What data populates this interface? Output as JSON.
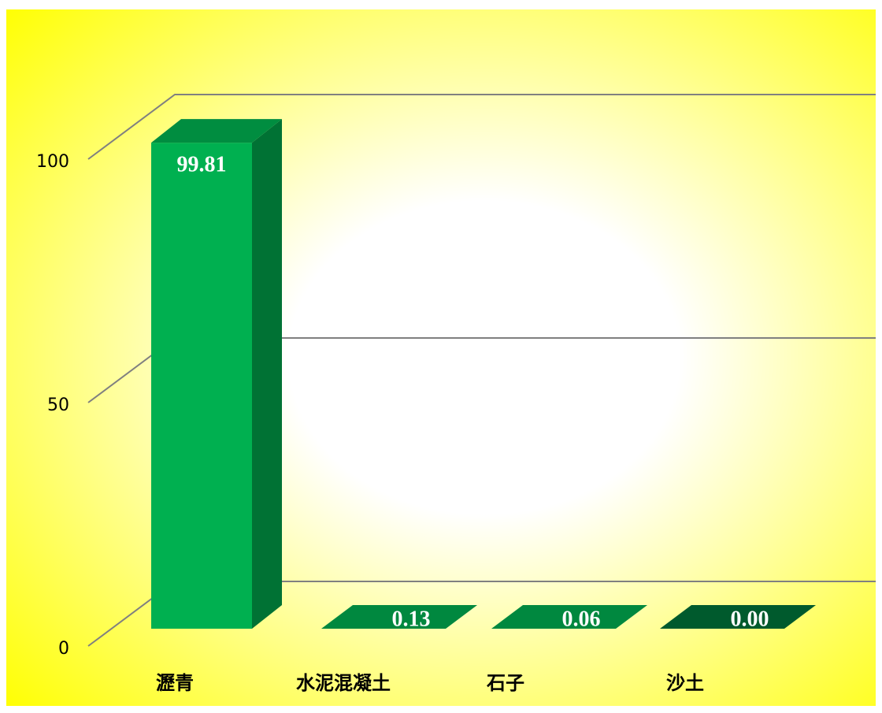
{
  "chart_data": {
    "type": "bar3d",
    "categories": [
      "瀝青",
      "水泥混凝土",
      "石子",
      "沙土"
    ],
    "values": [
      99.81,
      0.13,
      0.06,
      0.0
    ],
    "value_labels": [
      "99.81",
      "0.13",
      "0.06",
      "0.00"
    ],
    "colors": [
      "#00b050",
      "#00a04a",
      "#00a04a",
      "#006a35"
    ],
    "ylim": [
      0,
      100
    ],
    "yticks": [
      0,
      50,
      100
    ],
    "grid": true
  }
}
